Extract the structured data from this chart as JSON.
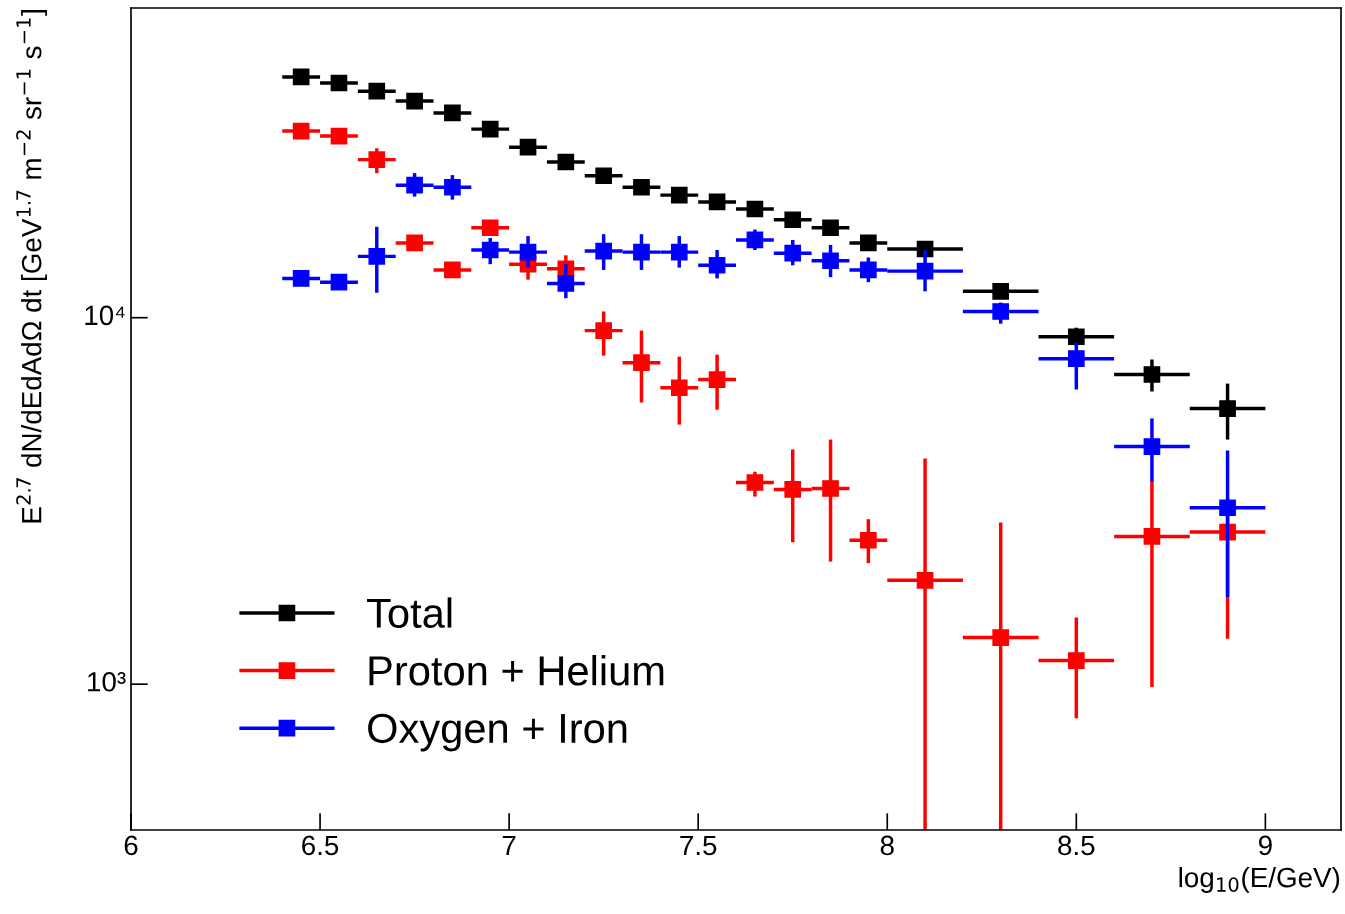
{
  "chart_data": {
    "type": "scatter",
    "xlabel": "log$_{10}$(E/GeV)",
    "ylabel": "E$^{2.7}$ dN/dEdAdΩ dt [GeV$^{1.7}$ m$^{−2}$ sr$^{−1}$ s$^{−1}$]",
    "log": "y",
    "marker": "square",
    "grid": false,
    "legend": "bottom left",
    "xlim": [
      6,
      9.2
    ],
    "ylim": [
      400,
      70000
    ],
    "xticks": [
      6,
      6.5,
      7,
      7.5,
      8,
      8.5,
      9
    ],
    "yticks": [
      {
        "value": 1000,
        "label": "10³"
      },
      {
        "value": 10000,
        "label": "10⁴"
      }
    ],
    "x": [
      6.45,
      6.55,
      6.65,
      6.75,
      6.85,
      6.95,
      7.05,
      7.15,
      7.25,
      7.35,
      7.45,
      7.55,
      7.65,
      7.75,
      7.85,
      7.95,
      8.1,
      8.3,
      8.5,
      8.7,
      8.9
    ],
    "series": [
      {
        "name": "Total",
        "color": "#000000",
        "values": [
          45400,
          43700,
          41500,
          39000,
          36200,
          32700,
          29200,
          26600,
          24400,
          22700,
          21600,
          20700,
          19800,
          18500,
          17600,
          16000,
          15400,
          11800,
          8870,
          7000,
          5650
        ],
        "xerrors": [
          0.05,
          0.05,
          0.05,
          0.05,
          0.05,
          0.05,
          0.05,
          0.05,
          0.05,
          0.05,
          0.05,
          0.05,
          0.05,
          0.05,
          0.05,
          0.05,
          0.1,
          0.1,
          0.1,
          0.1,
          0.1
        ],
        "errors": [
          null,
          null,
          null,
          null,
          null,
          null,
          null,
          null,
          null,
          null,
          null,
          null,
          null,
          null,
          null,
          null,
          null,
          null,
          [
            8390,
            9390
          ],
          [
            6290,
            7690
          ],
          [
            4650,
            6610
          ]
        ]
      },
      {
        "name": "Proton + Helium",
        "color": "#ff0000",
        "values": [
          32300,
          31300,
          27000,
          16000,
          13500,
          17600,
          14000,
          13600,
          9220,
          7540,
          6440,
          6780,
          3550,
          3400,
          3420,
          2470,
          1920,
          1340,
          1160,
          2530,
          2600
        ],
        "xerrors": [
          0.05,
          0.05,
          0.05,
          0.05,
          0.05,
          0.05,
          0.05,
          0.05,
          0.05,
          0.05,
          0.05,
          0.05,
          0.05,
          0.05,
          0.05,
          0.05,
          0.1,
          0.1,
          0.1,
          0.1,
          0.1
        ],
        "errors": [
          null,
          null,
          [
            24800,
            29000
          ],
          null,
          null,
          null,
          [
            12700,
            14000
          ],
          [
            13600,
            14800
          ],
          [
            7880,
            10400
          ],
          [
            5870,
            9220
          ],
          [
            5110,
            7830
          ],
          [
            5610,
            7930
          ],
          [
            3250,
            3800
          ],
          [
            2440,
            4370
          ],
          [
            2160,
            4650
          ],
          [
            2140,
            2820
          ],
          [
            400,
            4130
          ],
          [
            400,
            2760
          ],
          [
            807,
            1520
          ],
          [
            982,
            3600
          ],
          [
            1330,
            3210
          ]
        ]
      },
      {
        "name": "Oxygen + Iron",
        "color": "#0000ff",
        "values": [
          12800,
          12500,
          14700,
          23000,
          22700,
          15300,
          15100,
          12400,
          15200,
          15100,
          15100,
          13900,
          16300,
          15000,
          14300,
          13500,
          13400,
          10400,
          7730,
          4450,
          3030
        ],
        "xerrors": [
          0.05,
          0.05,
          0.05,
          0.05,
          0.05,
          0.05,
          0.05,
          0.05,
          0.05,
          0.05,
          0.05,
          0.05,
          0.05,
          0.05,
          0.05,
          0.05,
          0.1,
          0.1,
          0.1,
          0.1,
          0.1
        ],
        "errors": [
          null,
          null,
          [
            11700,
            17700
          ],
          [
            21400,
            24800
          ],
          [
            21000,
            24500
          ],
          [
            14000,
            16500
          ],
          [
            13700,
            16700
          ],
          [
            11300,
            14000
          ],
          [
            13500,
            16900
          ],
          [
            13500,
            16900
          ],
          [
            13700,
            16700
          ],
          [
            12800,
            15300
          ],
          [
            15300,
            17400
          ],
          [
            13900,
            16300
          ],
          [
            12900,
            15800
          ],
          [
            12500,
            14600
          ],
          [
            11800,
            15300
          ],
          [
            9630,
            11000
          ],
          [
            6370,
            8550
          ],
          [
            3570,
            5310
          ],
          [
            1730,
            4340
          ]
        ]
      }
    ]
  }
}
